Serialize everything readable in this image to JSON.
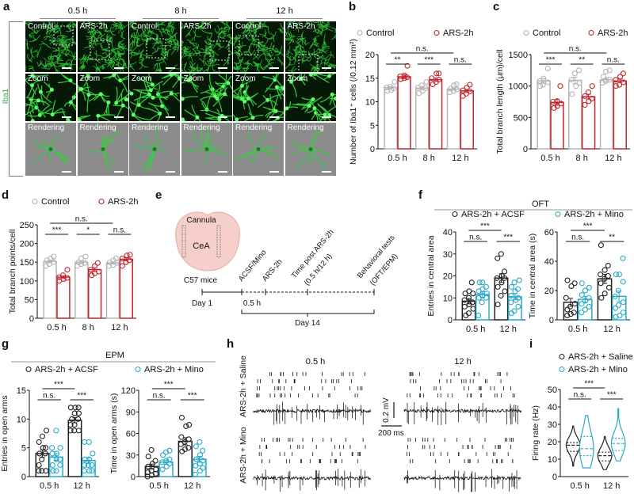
{
  "panel_labels": [
    "a",
    "b",
    "c",
    "d",
    "e",
    "f",
    "g",
    "h",
    "i"
  ],
  "panel_a": {
    "timepoints": [
      "0.5 h",
      "8 h",
      "12 h"
    ],
    "column_labels": [
      "Control",
      "ARS-2h",
      "Control",
      "ARS-2h",
      "Control",
      "ARS-2h"
    ],
    "row_labels": [
      "",
      "Zoom",
      "Rendering"
    ],
    "stain_label": "Iba1",
    "stain_color": "#2db34a"
  },
  "colors": {
    "control": "#b5b5b5",
    "ars": "#c1272d",
    "acsf": "#222222",
    "mino": "#29a9c8"
  },
  "panel_e": {
    "cannula": "Cannula",
    "region": "CeA",
    "mice": "C57 mice",
    "steps": [
      "ACSF/Mino",
      "ARS-2h",
      "Time post ARS-2h",
      "(0.5 h/12 h)",
      "Behavioral tests",
      "(OFT/EPM)"
    ],
    "day1": "Day 1",
    "interval": "0.5 h",
    "day14": "Day 14"
  },
  "panel_f_title": "OFT",
  "panel_g_title": "EPM",
  "panel_h": {
    "conditions": [
      "ARS-2h + Saline",
      "ARS-2h + Mino"
    ],
    "timepoints": [
      "0.5 h",
      "12 h"
    ],
    "scale_v": "0.2 mV",
    "scale_t": "200 ms"
  },
  "chart_data": [
    {
      "id": "b",
      "type": "bar",
      "ylabel": "Number of Iba1⁺ cells (/0.12 mm²)",
      "ylim": [
        0,
        20
      ],
      "yticks": [
        "0",
        "5",
        "10",
        "15",
        "20"
      ],
      "categories": [
        "0.5 h",
        "8 h",
        "12 h"
      ],
      "legend": [
        "Control",
        "ARS-2h"
      ],
      "series": [
        {
          "name": "Control",
          "color": "#b5b5b5",
          "means": [
            13,
            12.9,
            12.7
          ],
          "points": [
            [
              12.3,
              12.5,
              12.8,
              13,
              13.2,
              14.2
            ],
            [
              11.8,
              12.3,
              12.9,
              13,
              13.5,
              14.2
            ],
            [
              12,
              12.3,
              12.6,
              12.8,
              13.5,
              13.7
            ]
          ]
        },
        {
          "name": "ARS-2h",
          "color": "#c1272d",
          "means": [
            15.3,
            14.7,
            12.3
          ],
          "points": [
            [
              14.8,
              15,
              15.2,
              15.4,
              15.6,
              17.6
            ],
            [
              13.7,
              14.2,
              14.7,
              15,
              16,
              16
            ],
            [
              11.2,
              11.7,
              12.2,
              12.4,
              13,
              13.6
            ]
          ]
        }
      ],
      "brackets": [
        {
          "from": [
            0,
            0
          ],
          "to": [
            0,
            1
          ],
          "label": "**"
        },
        {
          "from": [
            1,
            0
          ],
          "to": [
            1,
            1
          ],
          "label": "***"
        },
        {
          "from": [
            2,
            0
          ],
          "to": [
            2,
            1
          ],
          "label": "n.s."
        },
        {
          "from": [
            0,
            0
          ],
          "to": [
            2,
            0
          ],
          "label": "n.s."
        }
      ]
    },
    {
      "id": "c",
      "type": "bar",
      "ylabel": "Total branch length (μm)/cell",
      "ylim": [
        0,
        1500
      ],
      "yticks": [
        "0",
        "500",
        "1000",
        "1500"
      ],
      "categories": [
        "0.5 h",
        "8 h",
        "12 h"
      ],
      "legend": [
        "Control",
        "ARS-2h"
      ],
      "series": [
        {
          "name": "Control",
          "color": "#b5b5b5",
          "means": [
            1080,
            1090,
            1100
          ],
          "points": [
            [
              1000,
              1020,
              1060,
              1080,
              1120,
              1280
            ],
            [
              870,
              1000,
              1050,
              1100,
              1200,
              1250
            ],
            [
              1050,
              1080,
              1100,
              1150,
              1230,
              1250
            ]
          ]
        },
        {
          "name": "ARS-2h",
          "color": "#c1272d",
          "means": [
            740,
            830,
            1080
          ],
          "points": [
            [
              650,
              680,
              720,
              750,
              760,
              1000
            ],
            [
              700,
              760,
              800,
              840,
              900,
              1000
            ],
            [
              1000,
              1020,
              1060,
              1100,
              1150,
              1200
            ]
          ]
        }
      ],
      "brackets": [
        {
          "from": [
            0,
            0
          ],
          "to": [
            0,
            1
          ],
          "label": "***"
        },
        {
          "from": [
            1,
            0
          ],
          "to": [
            1,
            1
          ],
          "label": "**"
        },
        {
          "from": [
            2,
            0
          ],
          "to": [
            2,
            1
          ],
          "label": "n.s."
        },
        {
          "from": [
            0,
            0
          ],
          "to": [
            2,
            0
          ],
          "label": "n.s."
        }
      ]
    },
    {
      "id": "d",
      "type": "bar",
      "ylabel": "Total branch points/cell",
      "ylim": [
        0,
        250
      ],
      "yticks": [
        "0",
        "50",
        "100",
        "150",
        "200",
        "250"
      ],
      "categories": [
        "0.5 h",
        "8 h",
        "12 h"
      ],
      "legend": [
        "Control",
        "ARS-2h"
      ],
      "series": [
        {
          "name": "Control",
          "color": "#b5b5b5",
          "means": [
            152,
            150,
            148
          ],
          "points": [
            [
              140,
              145,
              150,
              155,
              160,
              165
            ],
            [
              140,
              145,
              148,
              150,
              160,
              165
            ],
            [
              140,
              142,
              148,
              150,
              155,
              160
            ]
          ]
        },
        {
          "name": "ARS-2h",
          "color": "#c1272d",
          "means": [
            110,
            130,
            158
          ],
          "points": [
            [
              100,
              105,
              108,
              110,
              115,
              130
            ],
            [
              115,
              120,
              125,
              130,
              140,
              148
            ],
            [
              140,
              150,
              155,
              160,
              168,
              170
            ]
          ]
        }
      ],
      "brackets": [
        {
          "from": [
            0,
            0
          ],
          "to": [
            0,
            1
          ],
          "label": "***"
        },
        {
          "from": [
            1,
            0
          ],
          "to": [
            1,
            1
          ],
          "label": "*"
        },
        {
          "from": [
            2,
            0
          ],
          "to": [
            2,
            1
          ],
          "label": "n.s."
        },
        {
          "from": [
            0,
            0
          ],
          "to": [
            2,
            0
          ],
          "label": "n.s."
        }
      ]
    },
    {
      "id": "f1",
      "type": "bar",
      "ylabel": "Entries in central area",
      "ylim": [
        0,
        40
      ],
      "yticks": [
        "0",
        "10",
        "20",
        "30",
        "40"
      ],
      "categories": [
        "0.5 h",
        "12 h"
      ],
      "legend": [
        "ARS-2h + ACSF"
      ],
      "series": [
        {
          "name": "ARS-2h + ACSF",
          "color": "#222222",
          "means": [
            8.5,
            19
          ],
          "points": [
            [
              2,
              3,
              5,
              6,
              7,
              8,
              9,
              10,
              12,
              12,
              13,
              17
            ],
            [
              7,
              11,
              13,
              15,
              17,
              19,
              19,
              20,
              22,
              28,
              30
            ]
          ]
        },
        {
          "name": "ARS-2h + Mino",
          "color": "#29a9c8",
          "means": [
            11.5,
            10.5
          ],
          "points": [
            [
              2,
              8,
              10,
              10,
              11,
              12,
              13,
              14,
              15,
              17,
              17
            ],
            [
              3,
              4,
              6,
              8,
              9,
              10,
              11,
              13,
              14,
              15,
              17,
              18
            ]
          ]
        }
      ],
      "brackets": [
        {
          "from": [
            0,
            0
          ],
          "to": [
            0,
            1
          ],
          "label": "n.s."
        },
        {
          "from": [
            1,
            0
          ],
          "to": [
            1,
            1
          ],
          "label": "***"
        },
        {
          "from": [
            0,
            0
          ],
          "to": [
            1,
            0
          ],
          "label": "***"
        }
      ]
    },
    {
      "id": "f2",
      "type": "bar",
      "ylabel": "Time in central area (s)",
      "ylim": [
        0,
        60
      ],
      "yticks": [
        "0",
        "20",
        "40",
        "60"
      ],
      "categories": [
        "0.5 h",
        "12 h"
      ],
      "legend": [
        "ARS-2h + Mino"
      ],
      "series": [
        {
          "name": "ARS-2h + ACSF",
          "color": "#222222",
          "means": [
            12,
            28
          ],
          "points": [
            [
              3,
              4,
              5,
              7,
              9,
              11,
              15,
              23,
              25,
              27
            ],
            [
              15,
              18,
              22,
              25,
              28,
              30,
              31,
              34,
              37,
              51
            ]
          ]
        },
        {
          "name": "ARS-2h + Mino",
          "color": "#29a9c8",
          "means": [
            14,
            16
          ],
          "points": [
            [
              5,
              7,
              9,
              11,
              13,
              15,
              17,
              20,
              22,
              25
            ],
            [
              2,
              3,
              5,
              8,
              10,
              12,
              16,
              20,
              26,
              31,
              31,
              42
            ]
          ]
        }
      ],
      "brackets": [
        {
          "from": [
            0,
            0
          ],
          "to": [
            0,
            1
          ],
          "label": "n.s."
        },
        {
          "from": [
            1,
            0
          ],
          "to": [
            1,
            1
          ],
          "label": "**"
        },
        {
          "from": [
            0,
            0
          ],
          "to": [
            1,
            0
          ],
          "label": "***"
        }
      ]
    },
    {
      "id": "g1",
      "type": "bar",
      "ylabel": "Entries in open arms",
      "ylim": [
        0,
        15
      ],
      "yticks": [
        "0",
        "5",
        "10",
        "15"
      ],
      "categories": [
        "0.5 h",
        "12 h"
      ],
      "legend": [
        "ARS-2h + ACSF"
      ],
      "series": [
        {
          "name": "ARS-2h + ACSF",
          "color": "#222222",
          "means": [
            4,
            9.8
          ],
          "points": [
            [
              1,
              1,
              1,
              2,
              3,
              4,
              4,
              5,
              5,
              6,
              7,
              8
            ],
            [
              8,
              8,
              8,
              9,
              9,
              10,
              10,
              11,
              11,
              12,
              12,
              12
            ]
          ]
        },
        {
          "name": "ARS-2h + Mino",
          "color": "#29a9c8",
          "means": [
            3.4,
            2.8
          ],
          "points": [
            [
              1,
              1,
              2,
              2,
              3,
              3,
              4,
              4,
              5,
              5,
              8
            ],
            [
              1,
              1,
              1,
              2,
              2,
              2,
              3,
              3,
              4,
              6,
              6
            ]
          ]
        }
      ],
      "brackets": [
        {
          "from": [
            0,
            0
          ],
          "to": [
            0,
            1
          ],
          "label": "n.s."
        },
        {
          "from": [
            1,
            0
          ],
          "to": [
            1,
            1
          ],
          "label": "***"
        },
        {
          "from": [
            0,
            0
          ],
          "to": [
            1,
            0
          ],
          "label": "***"
        }
      ]
    },
    {
      "id": "g2",
      "type": "bar",
      "ylabel": "Time in open arms (s)",
      "ylim": [
        0,
        120
      ],
      "yticks": [
        "0",
        "30",
        "60",
        "90",
        "120"
      ],
      "categories": [
        "0.5 h",
        "12 h"
      ],
      "legend": [
        "ARS-2h + Mino"
      ],
      "series": [
        {
          "name": "ARS-2h + ACSF",
          "color": "#222222",
          "means": [
            14,
            49
          ],
          "points": [
            [
              0,
              2,
              4,
              6,
              8,
              10,
              14,
              18,
              22,
              28,
              37
            ],
            [
              35,
              38,
              40,
              45,
              48,
              52,
              55,
              70,
              72,
              82
            ]
          ]
        },
        {
          "name": "ARS-2h + Mino",
          "color": "#29a9c8",
          "means": [
            20,
            24
          ],
          "points": [
            [
              10,
              14,
              18,
              20,
              22,
              24,
              30,
              34,
              36
            ],
            [
              3,
              8,
              12,
              15,
              18,
              22,
              24,
              30,
              36,
              42,
              48
            ]
          ]
        }
      ],
      "brackets": [
        {
          "from": [
            0,
            0
          ],
          "to": [
            0,
            1
          ],
          "label": "n.s."
        },
        {
          "from": [
            1,
            0
          ],
          "to": [
            1,
            1
          ],
          "label": "***"
        },
        {
          "from": [
            0,
            0
          ],
          "to": [
            1,
            0
          ],
          "label": "***"
        }
      ]
    },
    {
      "id": "i",
      "type": "violin",
      "ylabel": "Firing rate (Hz)",
      "ylim": [
        0,
        50
      ],
      "yticks": [
        "0",
        "10",
        "20",
        "30",
        "40",
        "50"
      ],
      "categories": [
        "0.5 h",
        "12 h"
      ],
      "legend": [
        "ARS-2h + Saline",
        "ARS-2h + Mino"
      ],
      "series": [
        {
          "name": "ARS-2h + Saline",
          "color": "#222222",
          "stats": [
            {
              "min": 6,
              "q1": 14.5,
              "median": 18,
              "q3": 19.5,
              "max": 29
            },
            {
              "min": 4,
              "q1": 9,
              "median": 12,
              "q3": 14,
              "max": 23
            }
          ]
        },
        {
          "name": "ARS-2h + Mino",
          "color": "#29a9c8",
          "stats": [
            {
              "min": 5,
              "q1": 12,
              "median": 16,
              "q3": 23,
              "max": 35
            },
            {
              "min": 9,
              "q1": 15,
              "median": 19,
              "q3": 22,
              "max": 39
            }
          ]
        }
      ],
      "brackets": [
        {
          "from": [
            0,
            0
          ],
          "to": [
            0,
            1
          ],
          "label": "n.s."
        },
        {
          "from": [
            1,
            0
          ],
          "to": [
            1,
            1
          ],
          "label": "***"
        },
        {
          "from": [
            0,
            0
          ],
          "to": [
            1,
            0
          ],
          "label": "***"
        }
      ]
    }
  ]
}
